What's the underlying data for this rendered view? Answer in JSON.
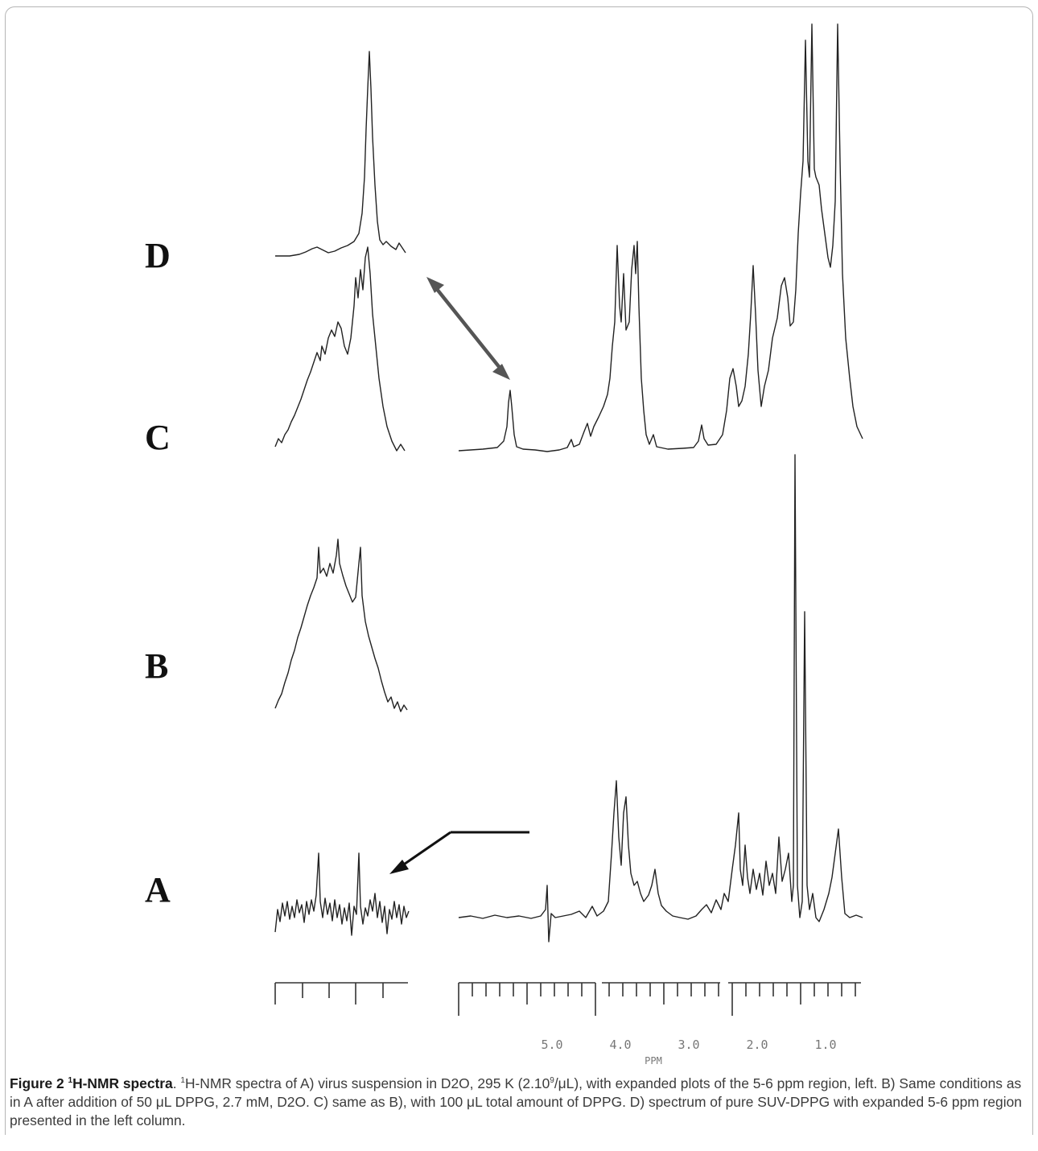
{
  "panel_labels": [
    "D",
    "C",
    "B",
    "A"
  ],
  "axis": {
    "ticks": [
      "5.0",
      "4.0",
      "3.0",
      "2.0",
      "1.0"
    ],
    "unit": "PPM"
  },
  "caption": {
    "figure": "Figure 2",
    "sup1": "1",
    "title": "H-NMR spectra",
    "sep": ". ",
    "sup2": "1",
    "text1": "H-NMR spectra of A) virus suspension in D2O, 295 K (2.10",
    "sup3": "9",
    "text2": "/μL), with expanded plots of the 5-6 ppm region, left. B) Same conditions as in A after addition of 50 μL DPPG, 2.7 mM, D2O. C) same as B), with 100 μL total amount of DPPG. D) spectrum of pure SUV-DPPG with expanded 5-6 ppm region presented in the left column."
  },
  "colors": {
    "label": "#111111",
    "trace": "#222222",
    "arrow": "#555555",
    "frame": "#b5b5b5"
  }
}
